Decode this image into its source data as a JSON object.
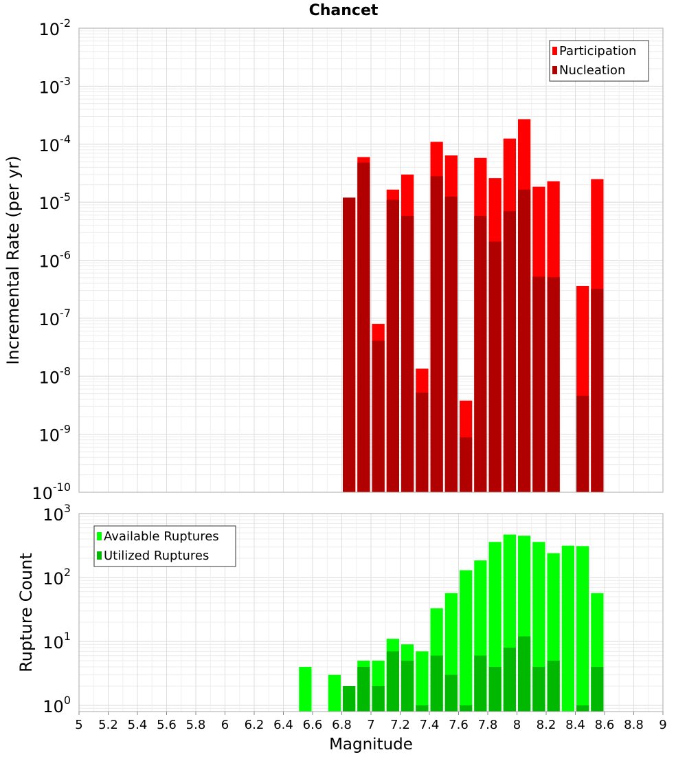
{
  "chart_data": [
    {
      "type": "bar",
      "title": "Chancet",
      "xlabel": "",
      "ylabel": "Incremental Rate (per yr)",
      "xlim": [
        5,
        9
      ],
      "ylim": [
        1e-10,
        0.01
      ],
      "yscale": "log",
      "bar_width": 0.1,
      "y_ticks": [
        {
          "base": "10",
          "exp": "-2"
        },
        {
          "base": "10",
          "exp": "-3"
        },
        {
          "base": "10",
          "exp": "-4"
        },
        {
          "base": "10",
          "exp": "-5"
        },
        {
          "base": "10",
          "exp": "-6"
        },
        {
          "base": "10",
          "exp": "-7"
        },
        {
          "base": "10",
          "exp": "-8"
        },
        {
          "base": "10",
          "exp": "-9"
        },
        {
          "base": "10",
          "exp": "-10"
        }
      ],
      "legend_position": "top-right",
      "grid": true,
      "x": [
        6.85,
        6.95,
        7.05,
        7.15,
        7.25,
        7.35,
        7.45,
        7.55,
        7.65,
        7.75,
        7.85,
        7.95,
        8.05,
        8.15,
        8.25,
        8.35,
        8.45,
        8.55
      ],
      "series": [
        {
          "name": "Participation",
          "color": "#ff0000",
          "values": [
            1.2e-05,
            6e-05,
            8e-08,
            1.65e-05,
            3e-05,
            1.35e-08,
            0.00011,
            6.4e-05,
            3.8e-09,
            5.8e-05,
            2.6e-05,
            0.000125,
            0.00027,
            1.85e-05,
            2.3e-05,
            null,
            3.6e-07,
            2.5e-05
          ]
        },
        {
          "name": "Nucleation",
          "color": "#b00000",
          "values": [
            1.2e-05,
            4.8e-05,
            4.1e-08,
            1.1e-05,
            5.8e-06,
            5.2e-09,
            2.8e-05,
            1.25e-05,
            8.8e-10,
            5.8e-06,
            2.1e-06,
            7e-06,
            1.65e-05,
            5.2e-07,
            5.1e-07,
            null,
            4.6e-09,
            3.2e-07
          ]
        }
      ]
    },
    {
      "type": "bar",
      "title": "",
      "xlabel": "Magnitude",
      "ylabel": "Rupture Count",
      "xlim": [
        5,
        9
      ],
      "ylim": [
        0.8,
        1000
      ],
      "yscale": "log",
      "bar_width": 0.1,
      "x_ticks": [
        "5",
        "5.2",
        "5.4",
        "5.6",
        "5.8",
        "6",
        "6.2",
        "6.4",
        "6.6",
        "6.8",
        "7",
        "7.2",
        "7.4",
        "7.6",
        "7.8",
        "8",
        "8.2",
        "8.4",
        "8.6",
        "8.8",
        "9"
      ],
      "y_ticks": [
        {
          "base": "10",
          "exp": "3"
        },
        {
          "base": "10",
          "exp": "2"
        },
        {
          "base": "10",
          "exp": "1"
        },
        {
          "base": "10",
          "exp": "0"
        }
      ],
      "legend_position": "top-left",
      "grid": true,
      "x": [
        6.55,
        6.75,
        6.85,
        6.95,
        7.05,
        7.15,
        7.25,
        7.35,
        7.45,
        7.55,
        7.65,
        7.75,
        7.85,
        7.95,
        8.05,
        8.15,
        8.25,
        8.35,
        8.45,
        8.55
      ],
      "series": [
        {
          "name": "Available Ruptures",
          "color": "#00ff00",
          "values": [
            4,
            3,
            2,
            5,
            5,
            11,
            9,
            7,
            33,
            57,
            130,
            185,
            360,
            470,
            450,
            360,
            240,
            315,
            310,
            57
          ]
        },
        {
          "name": "Utilized Ruptures",
          "color": "#00b800",
          "values": [
            null,
            null,
            2,
            4,
            2,
            7,
            5,
            1,
            6,
            3,
            1,
            6,
            4,
            8,
            12,
            4,
            5,
            null,
            1,
            4
          ]
        }
      ]
    }
  ]
}
